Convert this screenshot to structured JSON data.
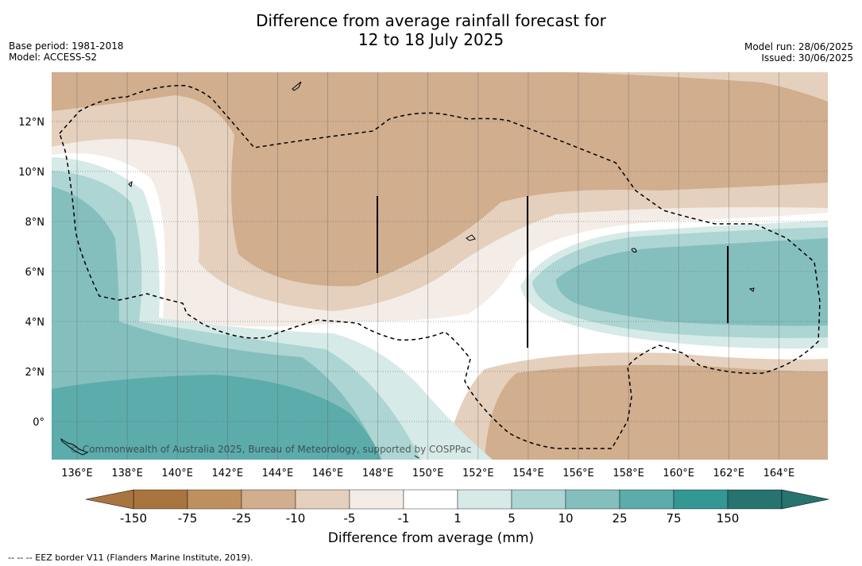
{
  "title": {
    "line1": "Difference from average rainfall forecast for",
    "line2": "12 to 18 July 2025"
  },
  "meta_left": {
    "base_period": "Base period: 1981-2018",
    "model": "Model: ACCESS-S2"
  },
  "meta_right": {
    "model_run": "Model run: 28/06/2025",
    "issued": "Issued: 30/06/2025"
  },
  "map": {
    "lon_ticks": [
      "136°E",
      "138°E",
      "140°E",
      "142°E",
      "144°E",
      "146°E",
      "148°E",
      "150°E",
      "152°E",
      "154°E",
      "156°E",
      "158°E",
      "160°E",
      "162°E",
      "164°E"
    ],
    "lat_ticks": [
      "12°N",
      "10°N",
      "8°N",
      "6°N",
      "4°N",
      "2°N",
      "0°"
    ],
    "copyright": "© Commonwealth of Australia 2025, Bureau of Meteorology, supported by COSPPac",
    "border_line": "dashed"
  },
  "legend": {
    "labels": [
      "-150",
      "-75",
      "-25",
      "-10",
      "-5",
      "-1",
      "1",
      "5",
      "10",
      "25",
      "75",
      "150"
    ],
    "colors": [
      "#a9753f",
      "#bf905f",
      "#d0ae8e",
      "#e4d0bc",
      "#f4ece6",
      "#ffffff",
      "#d6eae8",
      "#acd5d3",
      "#84bfbe",
      "#5bacab",
      "#339793",
      "#26736f"
    ],
    "dry_end_color": "#a9753f",
    "wet_end_color": "#26736f",
    "axis_label": "Difference from average (mm)"
  },
  "footnote": "--  --  -- EEZ border V11 (Flanders Marine Institute, 2019)."
}
